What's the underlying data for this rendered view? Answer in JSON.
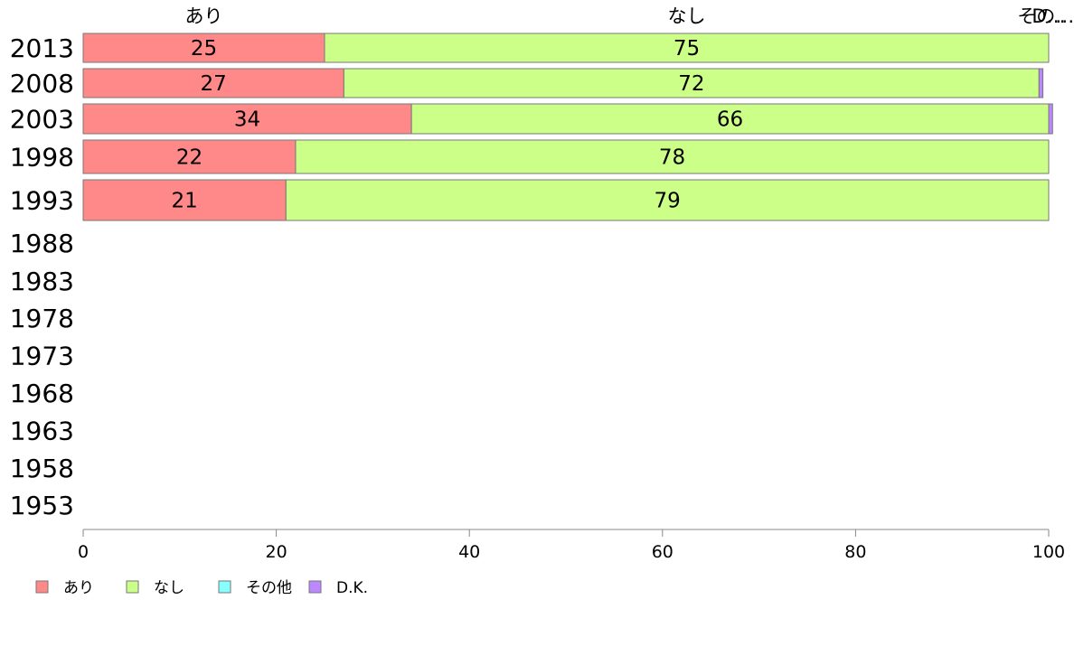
{
  "chart_data": {
    "type": "bar",
    "orientation": "horizontal",
    "stacked": true,
    "categories": [
      "2013",
      "2008",
      "2003",
      "1998",
      "1993",
      "1988",
      "1983",
      "1978",
      "1973",
      "1968",
      "1963",
      "1958",
      "1953"
    ],
    "series": [
      {
        "name": "あり",
        "color": "#ff8888",
        "values": [
          25,
          27,
          34,
          22,
          21,
          null,
          null,
          null,
          null,
          null,
          null,
          null,
          null
        ],
        "labels": [
          "25",
          "27",
          "34",
          "22",
          "21",
          "",
          "",
          "",
          "",
          "",
          "",
          "",
          ""
        ]
      },
      {
        "name": "なし",
        "color": "#ccff88",
        "values": [
          75,
          72,
          66,
          78,
          79,
          null,
          null,
          null,
          null,
          null,
          null,
          null,
          null
        ],
        "labels": [
          "75",
          "72",
          "66",
          "78",
          "79",
          "",
          "",
          "",
          "",
          "",
          "",
          "",
          ""
        ]
      },
      {
        "name": "その他",
        "color": "#88ffff",
        "values": [
          0,
          0,
          0,
          0,
          0,
          null,
          null,
          null,
          null,
          null,
          null,
          null,
          null
        ],
        "labels": [
          "",
          "",
          "",
          "",
          "",
          "",
          "",
          "",
          "",
          "",
          "",
          "",
          ""
        ]
      },
      {
        "name": "D.K.",
        "color": "#bb88ff",
        "values": [
          0,
          0.4,
          0.4,
          0,
          0,
          null,
          null,
          null,
          null,
          null,
          null,
          null,
          null
        ],
        "labels": [
          "",
          "",
          "",
          "",
          "",
          "",
          "",
          "",
          "",
          "",
          "",
          "",
          ""
        ]
      }
    ],
    "top_labels": [
      {
        "text": "あり",
        "x": 12.5
      },
      {
        "text": "なし",
        "x": 62.5
      },
      {
        "text": "その…",
        "x": 99.7
      },
      {
        "text": "D…",
        "x": 100
      }
    ],
    "xlim": [
      0,
      100
    ],
    "xticks": [
      0,
      20,
      40,
      60,
      80,
      100
    ],
    "tick_labels": [
      "0",
      "20",
      "40",
      "60",
      "80",
      "100"
    ],
    "legend": {
      "position": "bottom-left",
      "entries": [
        "あり",
        "なし",
        "その他",
        "D.K."
      ]
    },
    "grid": false,
    "title": "",
    "xlabel": "",
    "ylabel": ""
  }
}
